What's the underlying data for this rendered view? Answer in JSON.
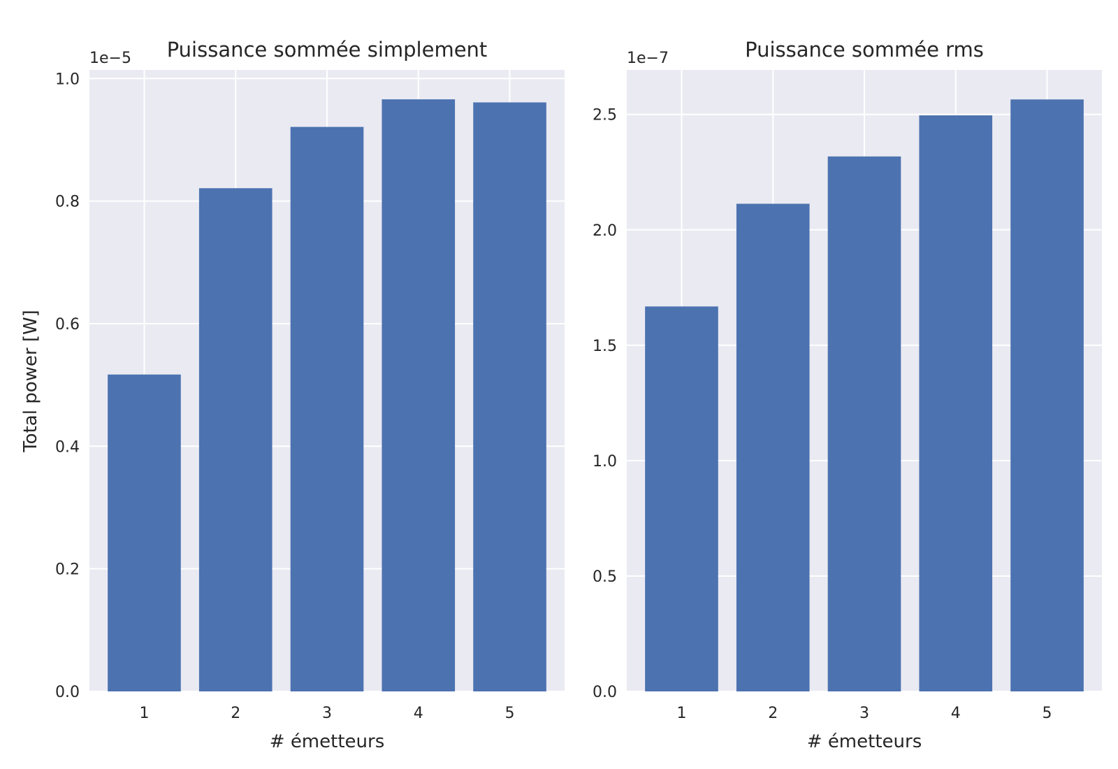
{
  "chart_data": [
    {
      "type": "bar",
      "title": "Puissance sommée simplement",
      "xlabel": "# émetteurs",
      "ylabel": "Total power [W]",
      "y_offset_label": "1e−5",
      "categories": [
        "1",
        "2",
        "3",
        "4",
        "5"
      ],
      "values": [
        5.17e-06,
        8.21e-06,
        9.21e-06,
        9.66e-06,
        9.61e-06
      ],
      "yticks": [
        0.0,
        0.2,
        0.4,
        0.6,
        0.8,
        1.0
      ],
      "ytick_labels": [
        "0.0",
        "0.2",
        "0.4",
        "0.6",
        "0.8",
        "1.0"
      ],
      "ytick_scale": 1e-05,
      "ylim": [
        0,
        1.014e-05
      ],
      "grid": true,
      "bar_color": "#4c72b0",
      "background_color": "#eaeaf2"
    },
    {
      "type": "bar",
      "title": "Puissance sommée rms",
      "xlabel": "# émetteurs",
      "ylabel": "",
      "y_offset_label": "1e−7",
      "categories": [
        "1",
        "2",
        "3",
        "4",
        "5"
      ],
      "values": [
        1.668e-07,
        2.113e-07,
        2.318e-07,
        2.496e-07,
        2.565e-07
      ],
      "yticks": [
        0.0,
        0.5,
        1.0,
        1.5,
        2.0,
        2.5
      ],
      "ytick_labels": [
        "0.0",
        "0.5",
        "1.0",
        "1.5",
        "2.0",
        "2.5"
      ],
      "ytick_scale": 1e-07,
      "ylim": [
        0,
        2.693e-07
      ],
      "grid": true,
      "bar_color": "#4c72b0",
      "background_color": "#eaeaf2"
    }
  ]
}
